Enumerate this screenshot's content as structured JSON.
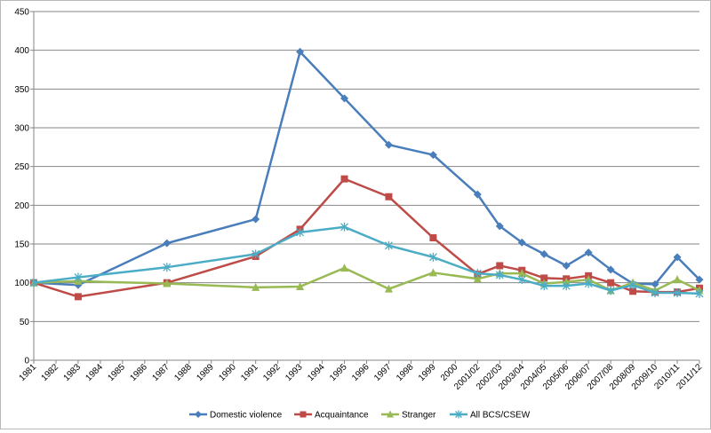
{
  "chart_data": {
    "type": "line",
    "title": "",
    "xlabel": "",
    "ylabel": "",
    "categories": [
      "1981",
      "1982",
      "1983",
      "1984",
      "1985",
      "1986",
      "1987",
      "1988",
      "1989",
      "1990",
      "1991",
      "1992",
      "1993",
      "1994",
      "1995",
      "1996",
      "1997",
      "1998",
      "1999",
      "2000",
      "2001/02",
      "2002/03",
      "2003/04",
      "2004/05",
      "2005/06",
      "2006/07",
      "2007/08",
      "2008/09",
      "2009/10",
      "2010/11",
      "2011/12"
    ],
    "ylim": [
      0,
      450
    ],
    "yticks": [
      "0",
      "50",
      "100",
      "150",
      "200",
      "250",
      "300",
      "350",
      "400",
      "450"
    ],
    "grid": "horizontal",
    "legend": "bottom",
    "series": [
      {
        "name": "Domestic violence",
        "color": "#4a7ebb",
        "marker": "diamond",
        "values": [
          100,
          null,
          97,
          null,
          null,
          null,
          151,
          null,
          null,
          null,
          182,
          null,
          398,
          null,
          338,
          null,
          278,
          null,
          265,
          null,
          214,
          173,
          152,
          137,
          122,
          139,
          117,
          99,
          98,
          133,
          104
        ]
      },
      {
        "name": "Acquaintance",
        "color": "#be4b48",
        "marker": "square",
        "values": [
          100,
          null,
          82,
          null,
          null,
          null,
          100,
          null,
          null,
          null,
          134,
          null,
          169,
          null,
          234,
          null,
          211,
          null,
          158,
          null,
          111,
          122,
          116,
          106,
          105,
          109,
          100,
          89,
          88,
          88,
          93
        ]
      },
      {
        "name": "Stranger",
        "color": "#98b954",
        "marker": "triangle",
        "values": [
          100,
          null,
          102,
          null,
          null,
          null,
          99,
          null,
          null,
          null,
          94,
          null,
          95,
          null,
          119,
          null,
          92,
          null,
          113,
          null,
          105,
          112,
          112,
          99,
          101,
          104,
          90,
          100,
          90,
          104,
          90
        ]
      },
      {
        "name": "All BCS/CSEW",
        "color": "#4bacc6",
        "marker": "star",
        "values": [
          100,
          null,
          107,
          null,
          null,
          null,
          120,
          null,
          null,
          null,
          137,
          null,
          165,
          null,
          172,
          null,
          148,
          null,
          133,
          null,
          112,
          110,
          104,
          96,
          96,
          99,
          90,
          97,
          87,
          87,
          86
        ]
      }
    ]
  }
}
